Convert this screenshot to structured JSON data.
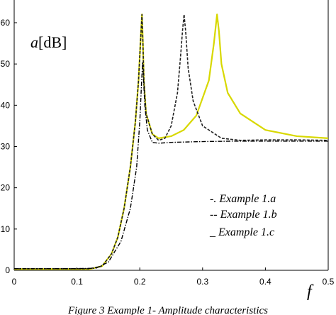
{
  "caption": "Figure 3 Example 1- Amplitude characteristics",
  "chart_data": {
    "type": "line",
    "xlabel": "f",
    "ylabel_italic": "a",
    "ylabel_unit": "[dB]",
    "xlim": [
      0,
      0.5
    ],
    "ylim": [
      0,
      60
    ],
    "x_ticks": [
      "0",
      "0.1",
      "0.2",
      "0.3",
      "0.4",
      "0.5"
    ],
    "y_ticks": [
      "0",
      "10",
      "20",
      "30",
      "40",
      "50",
      "60"
    ],
    "legend": [
      "-. Example 1.a",
      "-- Example 1.b",
      "_ Example 1.c"
    ],
    "series": [
      {
        "name": "-. Example 1.a",
        "color": "#000000",
        "x": [
          0,
          0.1,
          0.13,
          0.15,
          0.17,
          0.185,
          0.195,
          0.2,
          0.203,
          0.2045,
          0.206,
          0.208,
          0.212,
          0.22,
          0.23,
          0.25,
          0.3,
          0.35,
          0.4,
          0.45,
          0.5
        ],
        "y": [
          0.4,
          0.4,
          0.5,
          2,
          7,
          15,
          25,
          36,
          46,
          50.5,
          46,
          40,
          34,
          31,
          30.8,
          31,
          31.2,
          31.3,
          31.3,
          31.3,
          31.3
        ]
      },
      {
        "name": "-- Example 1.b",
        "color": "#222222",
        "x": [
          0,
          0.12,
          0.14,
          0.155,
          0.165,
          0.175,
          0.185,
          0.193,
          0.198,
          0.201,
          0.2035,
          0.205,
          0.2065,
          0.21,
          0.22,
          0.23,
          0.24,
          0.25,
          0.26,
          0.265,
          0.268,
          0.2705,
          0.273,
          0.277,
          0.285,
          0.3,
          0.33,
          0.36,
          0.4,
          0.45,
          0.5
        ],
        "y": [
          0.4,
          0.4,
          1,
          4,
          8,
          15,
          25,
          36,
          46,
          55,
          62,
          55,
          46,
          38,
          33,
          31.5,
          32,
          35,
          43,
          52,
          58,
          62,
          58,
          49,
          41,
          35,
          32,
          31.5,
          31.6,
          31.6,
          31.5
        ]
      },
      {
        "name": "_ Example 1.c",
        "color": "#d8d800",
        "x": [
          0,
          0.12,
          0.14,
          0.155,
          0.165,
          0.175,
          0.185,
          0.193,
          0.198,
          0.201,
          0.2035,
          0.205,
          0.2065,
          0.21,
          0.22,
          0.23,
          0.25,
          0.27,
          0.29,
          0.31,
          0.318,
          0.323,
          0.326,
          0.33,
          0.34,
          0.36,
          0.4,
          0.45,
          0.5
        ],
        "y": [
          0.3,
          0.3,
          1,
          4,
          8,
          15,
          25,
          36,
          46,
          55,
          62,
          55,
          46,
          38,
          33,
          32,
          32.5,
          34,
          37.5,
          46,
          55,
          62,
          58,
          50,
          43,
          38,
          34,
          32.5,
          32
        ]
      }
    ]
  }
}
